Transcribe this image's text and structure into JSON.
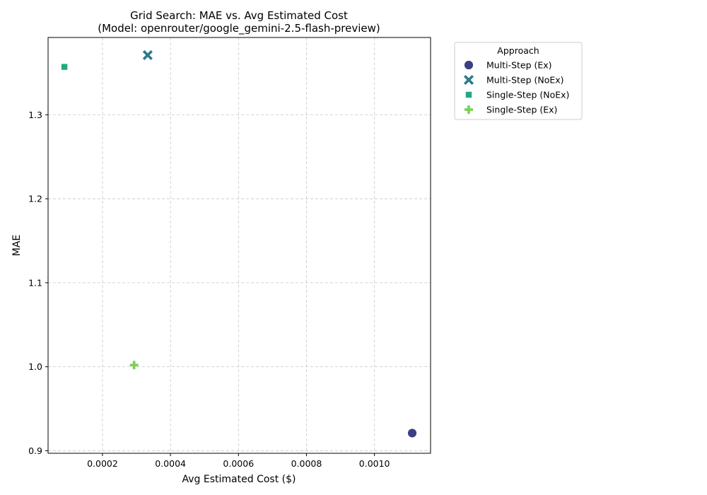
{
  "chart_data": {
    "type": "scatter",
    "title_line1": "Grid Search: MAE vs. Avg Estimated Cost",
    "title_line2": "(Model: openrouter/google_gemini-2.5-flash-preview)",
    "xlabel": "Avg Estimated Cost ($)",
    "ylabel": "MAE",
    "xlim": [
      4e-05,
      0.001165
    ],
    "ylim": [
      0.897,
      1.392
    ],
    "x_ticks": [
      0.0002,
      0.0004,
      0.0006,
      0.0008,
      0.001
    ],
    "x_tick_labels": [
      "0.0002",
      "0.0004",
      "0.0006",
      "0.0008",
      "0.0010"
    ],
    "y_ticks": [
      0.9,
      1.0,
      1.1,
      1.2,
      1.3
    ],
    "y_tick_labels": [
      "0.9",
      "1.0",
      "1.1",
      "1.2",
      "1.3"
    ],
    "grid": true,
    "legend_title": "Approach",
    "legend_position": "outside-top-right",
    "series": [
      {
        "name": "Multi-Step (Ex)",
        "marker": "circle",
        "color": "#3b3f84",
        "x": [
          0.001111
        ],
        "y": [
          0.921
        ]
      },
      {
        "name": "Multi-Step (NoEx)",
        "marker": "x",
        "color": "#2a7a8c",
        "x": [
          0.000333
        ],
        "y": [
          1.371
        ]
      },
      {
        "name": "Single-Step (NoEx)",
        "marker": "square",
        "color": "#22a884",
        "x": [
          8.8e-05
        ],
        "y": [
          1.357
        ]
      },
      {
        "name": "Single-Step (Ex)",
        "marker": "plus",
        "color": "#7ad151",
        "x": [
          0.000293
        ],
        "y": [
          1.002
        ]
      }
    ]
  }
}
